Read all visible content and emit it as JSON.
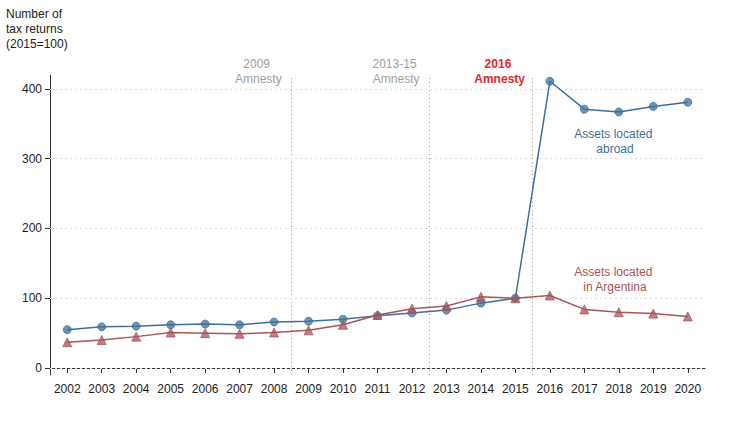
{
  "chart_data": {
    "type": "line",
    "ylabel": "Number of tax returns (2015=100)",
    "x": [
      2002,
      2003,
      2004,
      2005,
      2006,
      2007,
      2008,
      2009,
      2010,
      2011,
      2012,
      2013,
      2014,
      2015,
      2016,
      2017,
      2018,
      2019,
      2020
    ],
    "series": [
      {
        "name": "Assets located abroad",
        "color": "#3d6f9a",
        "marker": "circle",
        "values": [
          55,
          59,
          60,
          62,
          63,
          62,
          66,
          67,
          70,
          75,
          79,
          83,
          93,
          100,
          411,
          371,
          367,
          375,
          381
        ]
      },
      {
        "name": "Assets located in Argentina",
        "color": "#a8545a",
        "marker": "triangle",
        "values": [
          37,
          40,
          45,
          51,
          50,
          49,
          51,
          54,
          62,
          76,
          85,
          89,
          102,
          100,
          104,
          84,
          80,
          78,
          74
        ]
      }
    ],
    "xlim": [
      2001.5,
      2020.5
    ],
    "xticks": [
      2002,
      2003,
      2004,
      2005,
      2006,
      2007,
      2008,
      2009,
      2010,
      2011,
      2012,
      2013,
      2014,
      2015,
      2016,
      2017,
      2018,
      2019,
      2020
    ],
    "ylim": [
      -10,
      420
    ],
    "yticks": [
      0,
      100,
      200,
      300,
      400
    ],
    "grid": true,
    "annotations": [
      {
        "x": 2008.5,
        "text": "2009 Amnesty",
        "color": "#a0a0a0"
      },
      {
        "x": 2012.5,
        "text": "2013-15 Amnesty",
        "color": "#a0a0a0"
      },
      {
        "x": 2015.5,
        "text": "2016 Amnesty",
        "color": "#e8262a"
      }
    ]
  }
}
